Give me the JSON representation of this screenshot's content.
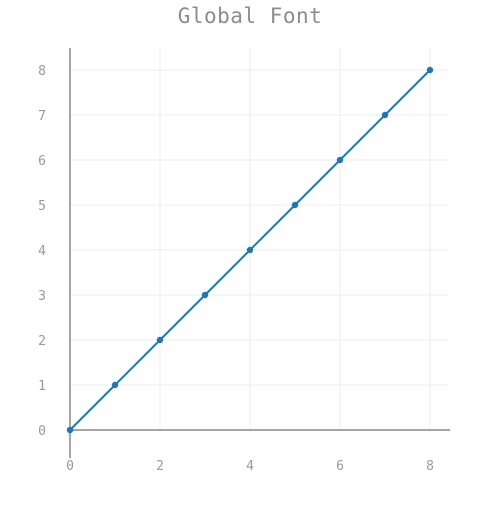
{
  "chart_data": {
    "type": "line",
    "title": "Global Font",
    "xlabel": "",
    "ylabel": "",
    "x": [
      0,
      1,
      2,
      3,
      4,
      5,
      6,
      7,
      8
    ],
    "series": [
      {
        "values": [
          0,
          1,
          2,
          3,
          4,
          5,
          6,
          7,
          8
        ],
        "color": "#1f77b4"
      }
    ],
    "xlim": [
      0,
      8.4
    ],
    "ylim": [
      0,
      8.4
    ],
    "xticks": [
      0,
      2,
      4,
      6,
      8
    ],
    "yticks": [
      0,
      1,
      2,
      3,
      4,
      5,
      6,
      7,
      8
    ],
    "grid": true,
    "grid_color": "#eeeeee",
    "axis_color": "#888888",
    "text_color": "#999999",
    "markers": true
  }
}
